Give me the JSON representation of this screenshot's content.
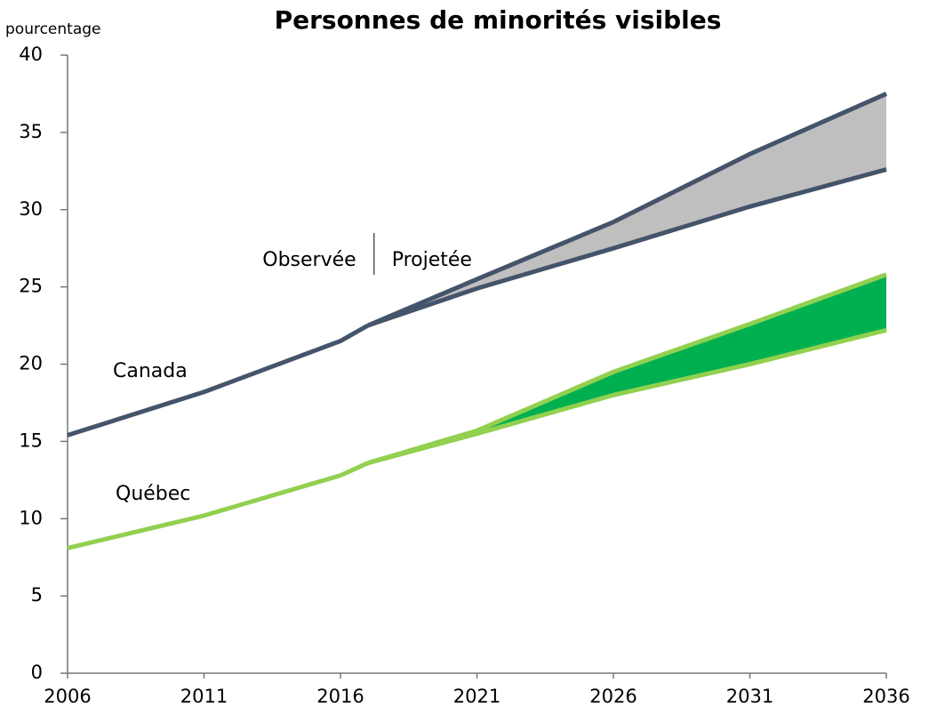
{
  "chart_data": {
    "type": "line",
    "title": "Personnes de minorités visibles",
    "ylabel": "pourcentage",
    "annotations": [
      "Observée",
      "Projetée"
    ],
    "x": [
      2006,
      2011,
      2016,
      2017,
      2021,
      2026,
      2031,
      2036
    ],
    "xlim": [
      2006,
      2036
    ],
    "xticks": [
      2006,
      2011,
      2016,
      2021,
      2026,
      2031,
      2036
    ],
    "ylim": [
      0,
      40
    ],
    "yticks": [
      0,
      5,
      10,
      15,
      20,
      25,
      30,
      35,
      40
    ],
    "series": [
      {
        "name": "Canada",
        "color": "#44546a",
        "band_color": "#bfbfbf",
        "values": [
          15.4,
          18.2,
          21.5,
          22.5,
          null,
          null,
          null,
          null
        ],
        "high": [
          null,
          null,
          null,
          22.5,
          25.5,
          29.2,
          33.6,
          37.5
        ],
        "low": [
          null,
          null,
          null,
          22.5,
          24.9,
          27.5,
          30.2,
          32.6
        ]
      },
      {
        "name": "Québec",
        "color": "#92d050",
        "band_color": "#00b050",
        "values": [
          8.1,
          10.2,
          12.8,
          13.6,
          null,
          null,
          null,
          null
        ],
        "high": [
          null,
          null,
          null,
          13.6,
          15.7,
          19.5,
          22.6,
          25.8
        ],
        "low": [
          null,
          null,
          null,
          13.6,
          15.5,
          18.0,
          20.0,
          22.2
        ]
      }
    ]
  }
}
